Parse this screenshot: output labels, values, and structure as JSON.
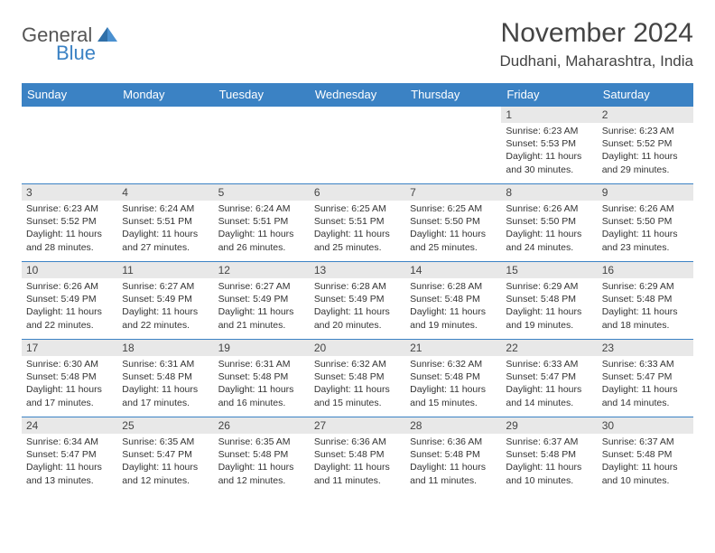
{
  "logo": {
    "text1": "General",
    "text2": "Blue"
  },
  "title": "November 2024",
  "location": "Dudhani, Maharashtra, India",
  "colors": {
    "header_bg": "#3b82c4",
    "header_text": "#ffffff",
    "daynum_bg": "#e8e8e8",
    "border": "#3b82c4",
    "body_text": "#333333",
    "logo_gray": "#555555",
    "logo_blue": "#3b82c4"
  },
  "day_headers": [
    "Sunday",
    "Monday",
    "Tuesday",
    "Wednesday",
    "Thursday",
    "Friday",
    "Saturday"
  ],
  "weeks": [
    [
      null,
      null,
      null,
      null,
      null,
      {
        "n": "1",
        "sunrise": "6:23 AM",
        "sunset": "5:53 PM",
        "daylight": "11 hours and 30 minutes."
      },
      {
        "n": "2",
        "sunrise": "6:23 AM",
        "sunset": "5:52 PM",
        "daylight": "11 hours and 29 minutes."
      }
    ],
    [
      {
        "n": "3",
        "sunrise": "6:23 AM",
        "sunset": "5:52 PM",
        "daylight": "11 hours and 28 minutes."
      },
      {
        "n": "4",
        "sunrise": "6:24 AM",
        "sunset": "5:51 PM",
        "daylight": "11 hours and 27 minutes."
      },
      {
        "n": "5",
        "sunrise": "6:24 AM",
        "sunset": "5:51 PM",
        "daylight": "11 hours and 26 minutes."
      },
      {
        "n": "6",
        "sunrise": "6:25 AM",
        "sunset": "5:51 PM",
        "daylight": "11 hours and 25 minutes."
      },
      {
        "n": "7",
        "sunrise": "6:25 AM",
        "sunset": "5:50 PM",
        "daylight": "11 hours and 25 minutes."
      },
      {
        "n": "8",
        "sunrise": "6:26 AM",
        "sunset": "5:50 PM",
        "daylight": "11 hours and 24 minutes."
      },
      {
        "n": "9",
        "sunrise": "6:26 AM",
        "sunset": "5:50 PM",
        "daylight": "11 hours and 23 minutes."
      }
    ],
    [
      {
        "n": "10",
        "sunrise": "6:26 AM",
        "sunset": "5:49 PM",
        "daylight": "11 hours and 22 minutes."
      },
      {
        "n": "11",
        "sunrise": "6:27 AM",
        "sunset": "5:49 PM",
        "daylight": "11 hours and 22 minutes."
      },
      {
        "n": "12",
        "sunrise": "6:27 AM",
        "sunset": "5:49 PM",
        "daylight": "11 hours and 21 minutes."
      },
      {
        "n": "13",
        "sunrise": "6:28 AM",
        "sunset": "5:49 PM",
        "daylight": "11 hours and 20 minutes."
      },
      {
        "n": "14",
        "sunrise": "6:28 AM",
        "sunset": "5:48 PM",
        "daylight": "11 hours and 19 minutes."
      },
      {
        "n": "15",
        "sunrise": "6:29 AM",
        "sunset": "5:48 PM",
        "daylight": "11 hours and 19 minutes."
      },
      {
        "n": "16",
        "sunrise": "6:29 AM",
        "sunset": "5:48 PM",
        "daylight": "11 hours and 18 minutes."
      }
    ],
    [
      {
        "n": "17",
        "sunrise": "6:30 AM",
        "sunset": "5:48 PM",
        "daylight": "11 hours and 17 minutes."
      },
      {
        "n": "18",
        "sunrise": "6:31 AM",
        "sunset": "5:48 PM",
        "daylight": "11 hours and 17 minutes."
      },
      {
        "n": "19",
        "sunrise": "6:31 AM",
        "sunset": "5:48 PM",
        "daylight": "11 hours and 16 minutes."
      },
      {
        "n": "20",
        "sunrise": "6:32 AM",
        "sunset": "5:48 PM",
        "daylight": "11 hours and 15 minutes."
      },
      {
        "n": "21",
        "sunrise": "6:32 AM",
        "sunset": "5:48 PM",
        "daylight": "11 hours and 15 minutes."
      },
      {
        "n": "22",
        "sunrise": "6:33 AM",
        "sunset": "5:47 PM",
        "daylight": "11 hours and 14 minutes."
      },
      {
        "n": "23",
        "sunrise": "6:33 AM",
        "sunset": "5:47 PM",
        "daylight": "11 hours and 14 minutes."
      }
    ],
    [
      {
        "n": "24",
        "sunrise": "6:34 AM",
        "sunset": "5:47 PM",
        "daylight": "11 hours and 13 minutes."
      },
      {
        "n": "25",
        "sunrise": "6:35 AM",
        "sunset": "5:47 PM",
        "daylight": "11 hours and 12 minutes."
      },
      {
        "n": "26",
        "sunrise": "6:35 AM",
        "sunset": "5:48 PM",
        "daylight": "11 hours and 12 minutes."
      },
      {
        "n": "27",
        "sunrise": "6:36 AM",
        "sunset": "5:48 PM",
        "daylight": "11 hours and 11 minutes."
      },
      {
        "n": "28",
        "sunrise": "6:36 AM",
        "sunset": "5:48 PM",
        "daylight": "11 hours and 11 minutes."
      },
      {
        "n": "29",
        "sunrise": "6:37 AM",
        "sunset": "5:48 PM",
        "daylight": "11 hours and 10 minutes."
      },
      {
        "n": "30",
        "sunrise": "6:37 AM",
        "sunset": "5:48 PM",
        "daylight": "11 hours and 10 minutes."
      }
    ]
  ],
  "labels": {
    "sunrise": "Sunrise:",
    "sunset": "Sunset:",
    "daylight": "Daylight:"
  }
}
